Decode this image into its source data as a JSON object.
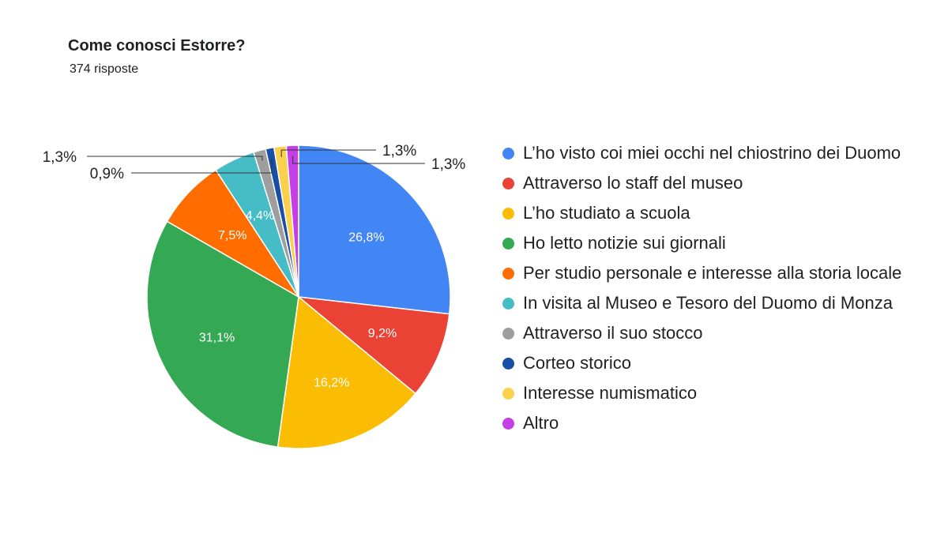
{
  "header": {
    "title": "Come conosci Estorre?",
    "responses": "374 risposte"
  },
  "chart_data": {
    "type": "pie",
    "title": "Come conosci Estorre?",
    "subtitle": "374 risposte",
    "legend_position": "right",
    "start_angle_deg": 0,
    "direction": "clockwise",
    "slices": [
      {
        "label": "L’ho visto coi miei occhi nel chiostrino dei Duomo",
        "value": 26.8,
        "display": "26,8%",
        "color": "#4285f4"
      },
      {
        "label": "Attraverso lo staff del museo",
        "value": 9.2,
        "display": "9,2%",
        "color": "#ea4335"
      },
      {
        "label": "L’ho studiato a scuola",
        "value": 16.2,
        "display": "16,2%",
        "color": "#fbbc04"
      },
      {
        "label": "Ho letto notizie sui giornali",
        "value": 31.1,
        "display": "31,1%",
        "color": "#34a853"
      },
      {
        "label": "Per studio personale e interesse alla storia locale",
        "value": 7.5,
        "display": "7,5%",
        "color": "#ff6d01"
      },
      {
        "label": "In visita al Museo e Tesoro del Duomo di Monza",
        "value": 4.4,
        "display": "4,4%",
        "color": "#46bdc6"
      },
      {
        "label": "Attraverso il suo stocco",
        "value": 1.3,
        "display": "1,3%",
        "color": "#9e9e9e"
      },
      {
        "label": "Corteo storico",
        "value": 0.9,
        "display": "0,9%",
        "color": "#174ea6"
      },
      {
        "label": "Interesse numismatico",
        "value": 1.3,
        "display": "1,3%",
        "color": "#fcd04f"
      },
      {
        "label": "Altro",
        "value": 1.3,
        "display": "1,3%",
        "color": "#c53ee6"
      }
    ]
  }
}
